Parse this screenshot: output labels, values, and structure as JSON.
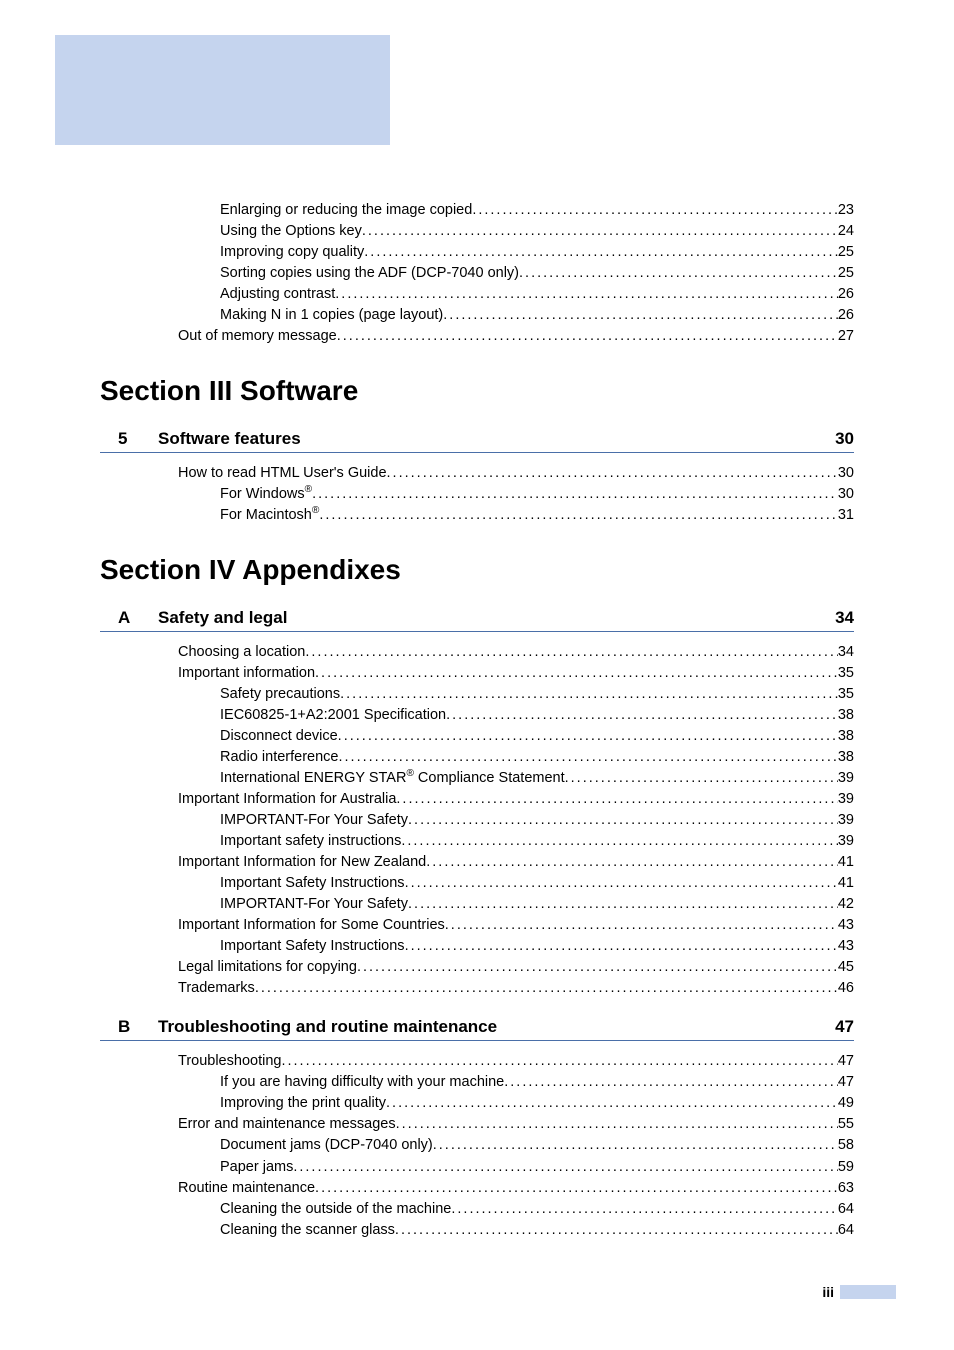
{
  "colors": {
    "header_block": "#c5d4ee",
    "rule": "#4a6fa8",
    "background": "#ffffff",
    "text": "#000000"
  },
  "typography": {
    "body_pt": 14.5,
    "section_title_pt": 28,
    "chapter_title_pt": 17,
    "family": "Arial, Helvetica, sans-serif"
  },
  "top_lines": [
    {
      "indent": 2,
      "text": "Enlarging or reducing the image copied",
      "page": "23"
    },
    {
      "indent": 2,
      "text": "Using the Options key",
      "page": "24"
    },
    {
      "indent": 2,
      "text": "Improving copy quality",
      "page": "25"
    },
    {
      "indent": 2,
      "text": "Sorting copies using the ADF (DCP-7040 only)",
      "page": "25"
    },
    {
      "indent": 2,
      "text": "Adjusting contrast",
      "page": "26"
    },
    {
      "indent": 2,
      "text": "Making N in 1 copies (page layout)",
      "page": "26"
    },
    {
      "indent": 1,
      "text": "Out of memory message",
      "page": "27"
    }
  ],
  "section3": {
    "title": "Section III  Software",
    "chapter": {
      "num": "5",
      "title": "Software features",
      "page": "30"
    },
    "lines": [
      {
        "indent": 1,
        "text": "How to read HTML User's Guide",
        "page": "30"
      },
      {
        "indent": 2,
        "text_html": "For Windows<sup>®</sup>",
        "page": "30"
      },
      {
        "indent": 2,
        "text_html": "For Macintosh<sup>®</sup>",
        "page": "31"
      }
    ]
  },
  "section4": {
    "title": "Section IV Appendixes",
    "chapterA": {
      "num": "A",
      "title": "Safety and legal",
      "page": "34"
    },
    "linesA": [
      {
        "indent": 1,
        "text": "Choosing a location",
        "page": "34"
      },
      {
        "indent": 1,
        "text": "Important information",
        "page": "35"
      },
      {
        "indent": 2,
        "text": "Safety precautions",
        "page": "35"
      },
      {
        "indent": 2,
        "text": "IEC60825-1+A2:2001 Specification",
        "page": "38"
      },
      {
        "indent": 2,
        "text": "Disconnect device",
        "page": "38"
      },
      {
        "indent": 2,
        "text": "Radio interference",
        "page": "38"
      },
      {
        "indent": 2,
        "text_html": "International ENERGY STAR<sup>®</sup> Compliance Statement",
        "page": "39"
      },
      {
        "indent": 1,
        "text": "Important Information for Australia",
        "page": "39"
      },
      {
        "indent": 2,
        "text": "IMPORTANT-For Your Safety",
        "page": "39"
      },
      {
        "indent": 2,
        "text": "Important safety instructions",
        "page": "39"
      },
      {
        "indent": 1,
        "text": "Important Information for New Zealand",
        "page": "41"
      },
      {
        "indent": 2,
        "text": "Important Safety Instructions",
        "page": "41"
      },
      {
        "indent": 2,
        "text": "IMPORTANT-For Your Safety",
        "page": "42"
      },
      {
        "indent": 1,
        "text": "Important Information for Some Countries",
        "page": "43"
      },
      {
        "indent": 2,
        "text": "Important Safety Instructions",
        "page": "43"
      },
      {
        "indent": 1,
        "text": "Legal limitations for copying",
        "page": "45"
      },
      {
        "indent": 1,
        "text": "Trademarks",
        "page": "46"
      }
    ],
    "chapterB": {
      "num": "B",
      "title": "Troubleshooting and routine maintenance",
      "page": "47"
    },
    "linesB": [
      {
        "indent": 1,
        "text": "Troubleshooting",
        "page": "47"
      },
      {
        "indent": 2,
        "text": "If you are having difficulty with your machine",
        "page": "47"
      },
      {
        "indent": 2,
        "text": "Improving the print quality",
        "page": "49"
      },
      {
        "indent": 1,
        "text": "Error and maintenance messages",
        "page": "55"
      },
      {
        "indent": 2,
        "text": "Document jams (DCP-7040 only)",
        "page": "58"
      },
      {
        "indent": 2,
        "text": "Paper jams",
        "page": "59"
      },
      {
        "indent": 1,
        "text": "Routine maintenance",
        "page": "63"
      },
      {
        "indent": 2,
        "text": "Cleaning the outside of the machine",
        "page": "64"
      },
      {
        "indent": 2,
        "text": "Cleaning the scanner glass",
        "page": "64"
      }
    ]
  },
  "footer": {
    "page_num": "iii"
  }
}
